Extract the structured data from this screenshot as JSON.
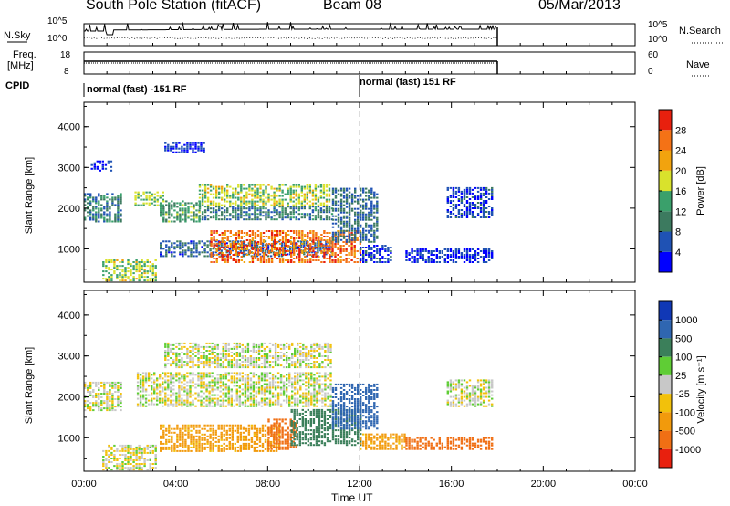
{
  "header": {
    "station": "South Pole Station (fitACF)",
    "beam": "Beam 08",
    "date": "05/Mar/2013"
  },
  "nsky_panel": {
    "left_label": "N.Sky",
    "left_ticks": [
      "10^5",
      "10^0"
    ],
    "right_ticks": [
      "10^5",
      "10^0"
    ],
    "right_label": "N.Search"
  },
  "freq_panel": {
    "left_label_line1": "Freq.",
    "left_label_line2": "[MHz]",
    "left_ticks": [
      "18",
      "8"
    ],
    "right_ticks": [
      "60",
      "0"
    ],
    "right_label": "Nave"
  },
  "cpid_panel": {
    "label": "CPID",
    "segments": [
      {
        "text": "normal (fast) -151 RF",
        "start_hour": 0
      },
      {
        "text": "normal (fast) 151 RF",
        "start_hour": 12
      }
    ]
  },
  "x_axis": {
    "label": "Time UT",
    "ticks": [
      "00:00",
      "04:00",
      "08:00",
      "12:00",
      "16:00",
      "20:00",
      "00:00"
    ],
    "range_hours": [
      0,
      24
    ],
    "data_end_hour": 18
  },
  "colors": {
    "power": [
      "#0000ff",
      "#1f52b4",
      "#3c7a5f",
      "#3aa06b",
      "#d9e22c",
      "#f2a30e",
      "#f47216",
      "#e8200e"
    ],
    "velocity": [
      "#1038b6",
      "#2f66b1",
      "#3b7f5a",
      "#5fcd35",
      "#c8c8c8",
      "#f2c10b",
      "#f29a0c",
      "#f06f14",
      "#e8200e"
    ]
  },
  "chart_data": [
    {
      "type": "heatmap",
      "name": "power",
      "ylabel": "Slant Range [km]",
      "ylim": [
        180,
        4600
      ],
      "yticks": [
        "1000",
        "2000",
        "3000",
        "4000"
      ],
      "colorbar_label": "Power [dB]",
      "colorbar_ticks": [
        "4",
        "8",
        "12",
        "16",
        "20",
        "24",
        "28"
      ],
      "colorbar_range": [
        0,
        32
      ],
      "echo_regions": [
        {
          "t_start": 0.0,
          "t_end": 1.6,
          "r_low": 1650,
          "r_high": 2350,
          "value": 10
        },
        {
          "t_start": 0.3,
          "t_end": 1.2,
          "r_low": 2900,
          "r_high": 3150,
          "value": 4
        },
        {
          "t_start": 0.8,
          "t_end": 3.2,
          "r_low": 200,
          "r_high": 700,
          "value": 17
        },
        {
          "t_start": 2.2,
          "t_end": 3.5,
          "r_low": 2050,
          "r_high": 2400,
          "value": 16
        },
        {
          "t_start": 3.3,
          "t_end": 5.0,
          "r_low": 1650,
          "r_high": 2150,
          "value": 13
        },
        {
          "t_start": 3.5,
          "t_end": 5.3,
          "r_low": 3350,
          "r_high": 3600,
          "value": 4
        },
        {
          "t_start": 3.3,
          "t_end": 10.8,
          "r_low": 800,
          "r_high": 1200,
          "value": 7
        },
        {
          "t_start": 5.0,
          "t_end": 10.7,
          "r_low": 2050,
          "r_high": 2550,
          "value": 17
        },
        {
          "t_start": 5.0,
          "t_end": 10.8,
          "r_low": 1700,
          "r_high": 2050,
          "value": 10
        },
        {
          "t_start": 5.5,
          "t_end": 12.0,
          "r_low": 650,
          "r_high": 1450,
          "value": 26
        },
        {
          "t_start": 10.8,
          "t_end": 12.8,
          "r_low": 1150,
          "r_high": 2500,
          "value": 8
        },
        {
          "t_start": 12.0,
          "t_end": 13.4,
          "r_low": 650,
          "r_high": 1100,
          "value": 5
        },
        {
          "t_start": 15.8,
          "t_end": 17.8,
          "r_low": 1750,
          "r_high": 2500,
          "value": 5
        },
        {
          "t_start": 14.0,
          "t_end": 17.8,
          "r_low": 650,
          "r_high": 1000,
          "value": 4
        }
      ]
    },
    {
      "type": "heatmap",
      "name": "velocity",
      "ylabel": "Slant Range [km]",
      "ylim": [
        180,
        4600
      ],
      "yticks": [
        "1000",
        "2000",
        "3000",
        "4000"
      ],
      "colorbar_label": "Velocity [m s⁻¹]",
      "colorbar_ticks": [
        "1000",
        "500",
        "100",
        "25",
        "-25",
        "-100",
        "-500",
        "-1000"
      ],
      "echo_regions": [
        {
          "t_start": 0.0,
          "t_end": 1.6,
          "r_low": 1650,
          "r_high": 2350,
          "value": 0
        },
        {
          "t_start": 0.8,
          "t_end": 3.2,
          "r_low": 200,
          "r_high": 800,
          "value": 0
        },
        {
          "t_start": 2.3,
          "t_end": 10.7,
          "r_low": 1750,
          "r_high": 2600,
          "value": 0
        },
        {
          "t_start": 3.5,
          "t_end": 10.7,
          "r_low": 2700,
          "r_high": 3300,
          "value": 0
        },
        {
          "t_start": 3.3,
          "t_end": 8.5,
          "r_low": 650,
          "r_high": 1300,
          "value": -150
        },
        {
          "t_start": 8.0,
          "t_end": 9.3,
          "r_low": 700,
          "r_high": 1450,
          "value": -700
        },
        {
          "t_start": 9.0,
          "t_end": 12.0,
          "r_low": 800,
          "r_high": 1700,
          "value": 200
        },
        {
          "t_start": 10.8,
          "t_end": 12.8,
          "r_low": 1200,
          "r_high": 2300,
          "value": 600
        },
        {
          "t_start": 12.0,
          "t_end": 14.0,
          "r_low": 700,
          "r_high": 1100,
          "value": -150
        },
        {
          "t_start": 14.0,
          "t_end": 17.8,
          "r_low": 700,
          "r_high": 1000,
          "value": -700
        },
        {
          "t_start": 15.8,
          "t_end": 17.8,
          "r_low": 1750,
          "r_high": 2400,
          "value": 0
        }
      ]
    }
  ]
}
